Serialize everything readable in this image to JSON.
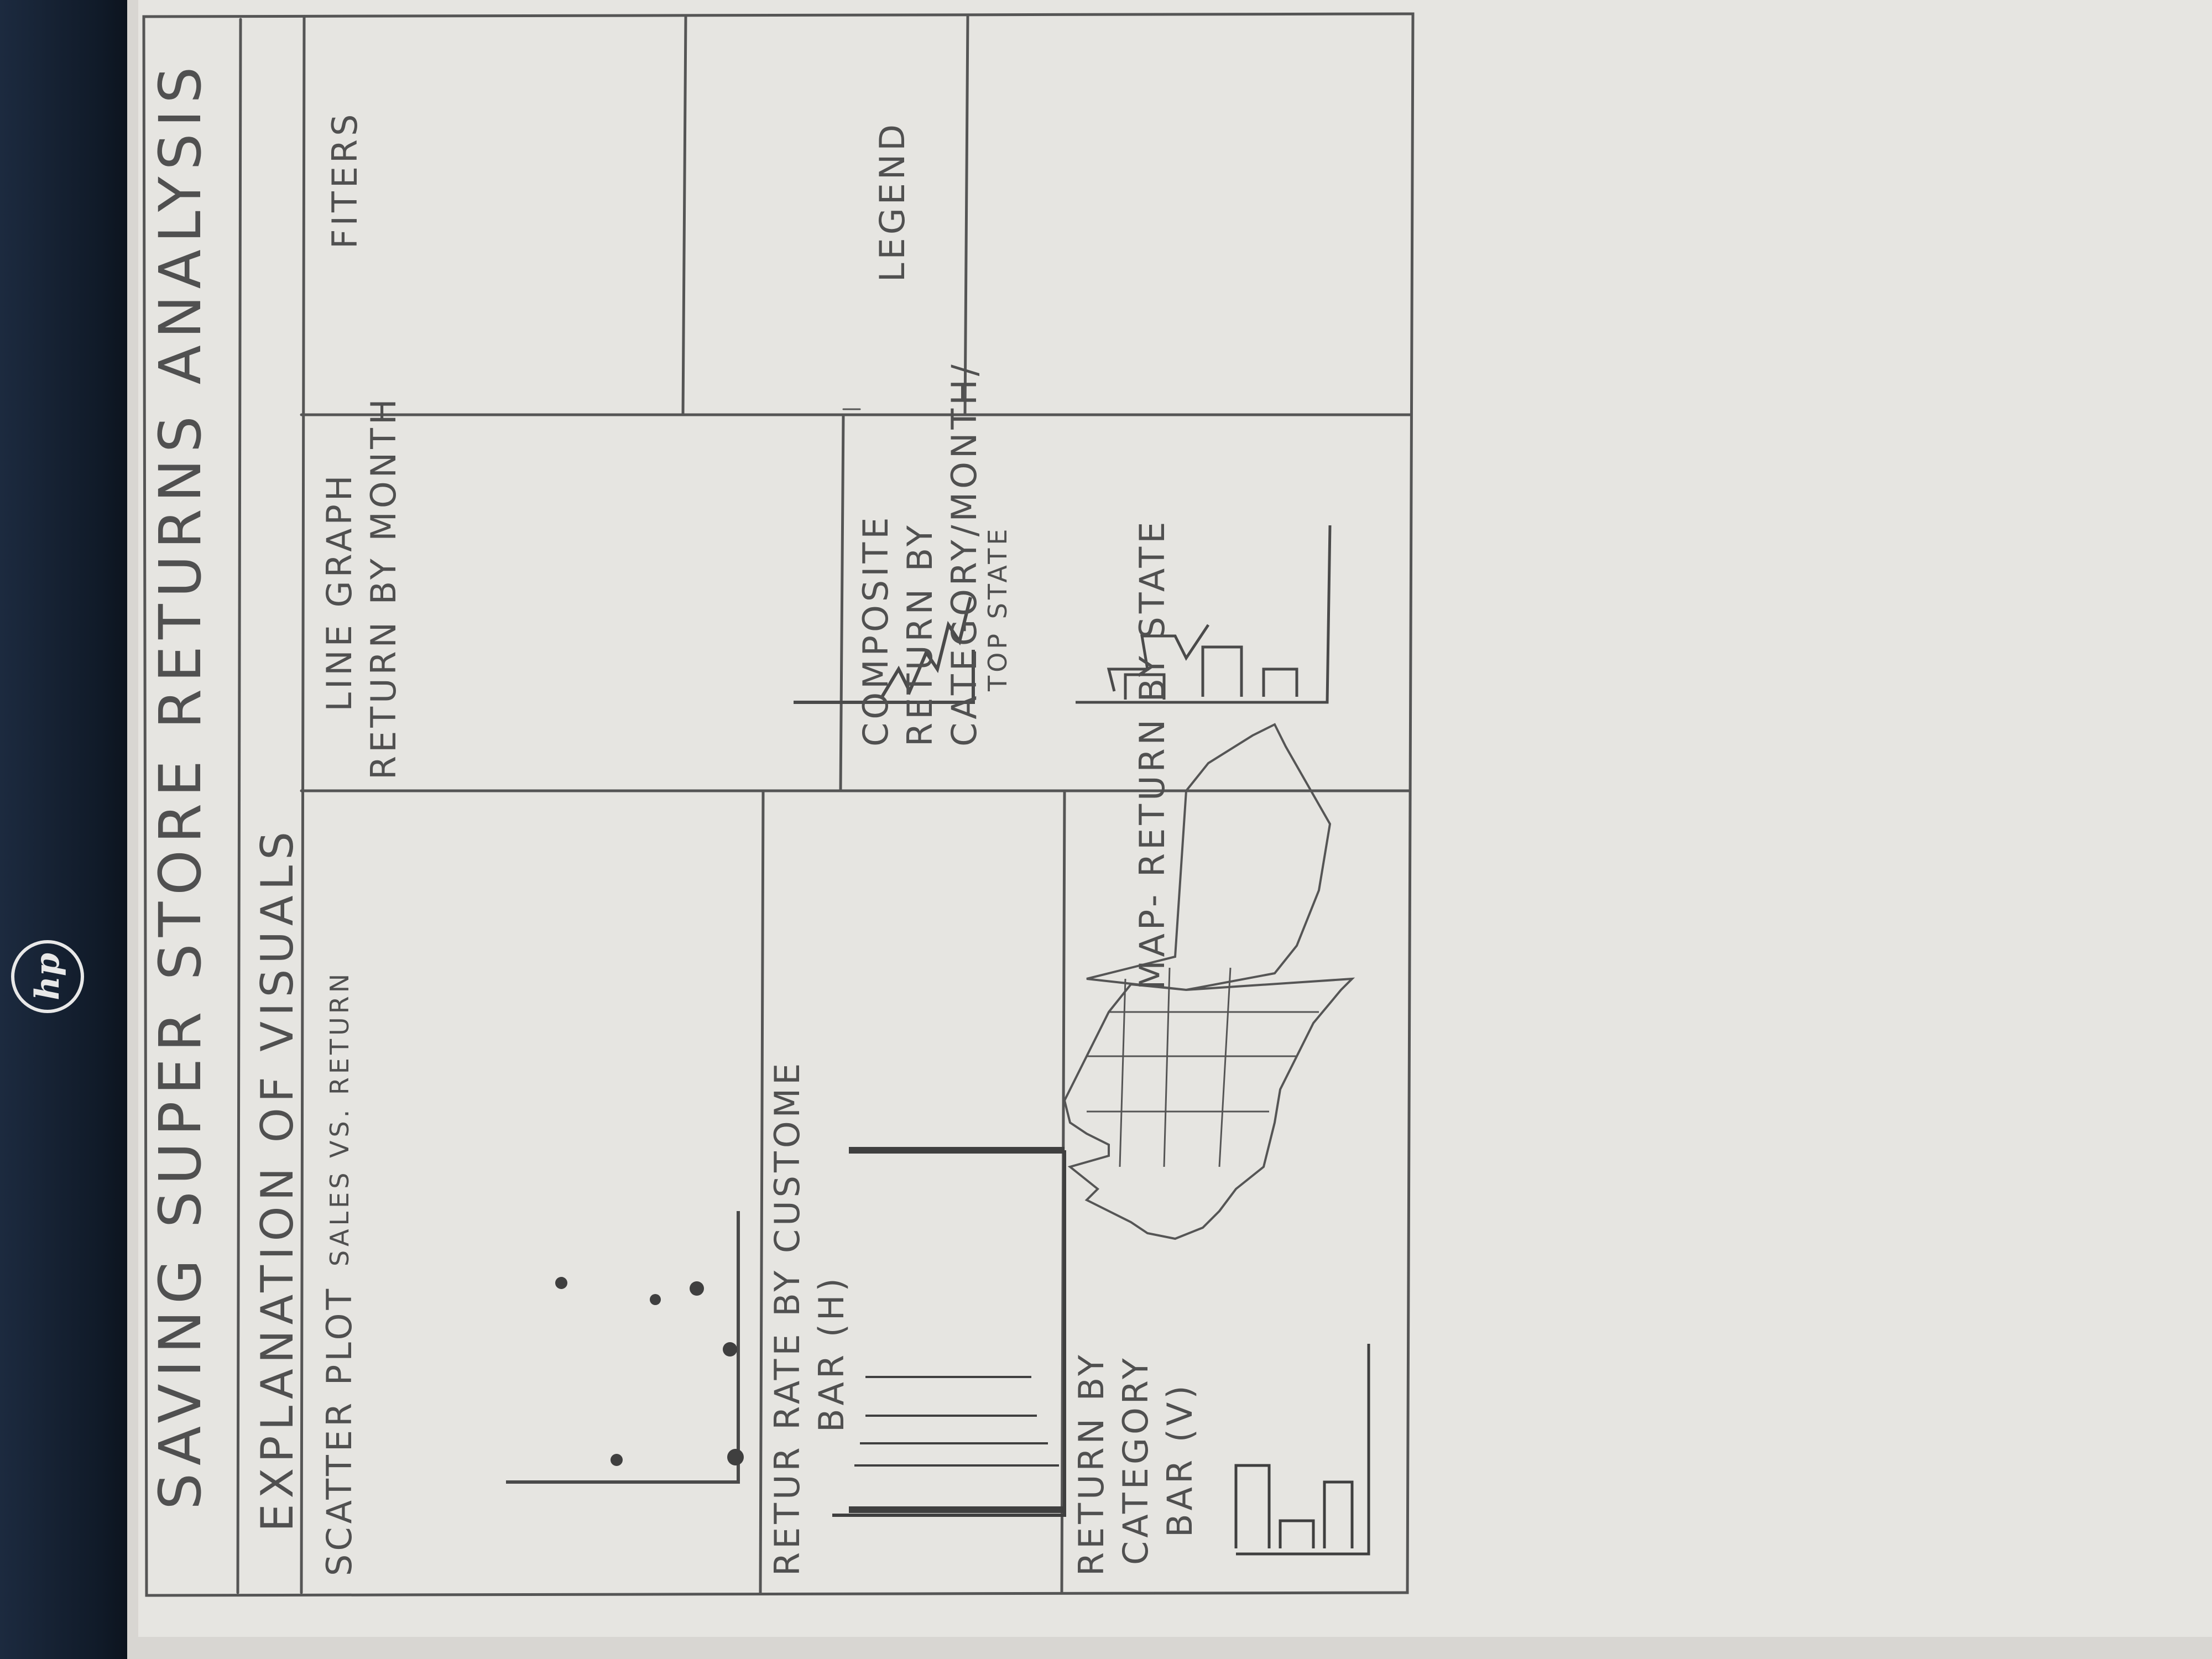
{
  "title": "SAVING SUPER STORE RETURNS ANALYSIS",
  "subtitle": "EXPLANATION OF VISUALS",
  "panels": {
    "scatter": {
      "label": "SCATTER PLOT",
      "sublabel": "SALES VS. RETURN"
    },
    "line": {
      "line1": "LINE GRAPH",
      "line2": "RETURN BY MONTH"
    },
    "filters": {
      "label": "FITERS"
    },
    "return_rate": {
      "line1": "RETUR RATE BY CUSTOME",
      "line2": "BAR (H)"
    },
    "composite": {
      "line1": "COMPOSITE",
      "line2": "RETURN BY",
      "line3": "CATEGORY/MONTH/",
      "line4": "TOP STATE"
    },
    "legend": {
      "label": "LEGEND"
    },
    "category": {
      "line1": "RETURN BY",
      "line2": "CATEGORY",
      "line3": "BAR (V)"
    },
    "map": {
      "label": "MAP- RETURN BY STATE"
    }
  },
  "colors": {
    "pencil": "#4a4a4a",
    "paper": "#e9e8e4",
    "laptop": "#101a28"
  },
  "icons": [
    "hp-logo-icon",
    "us-map-icon"
  ]
}
